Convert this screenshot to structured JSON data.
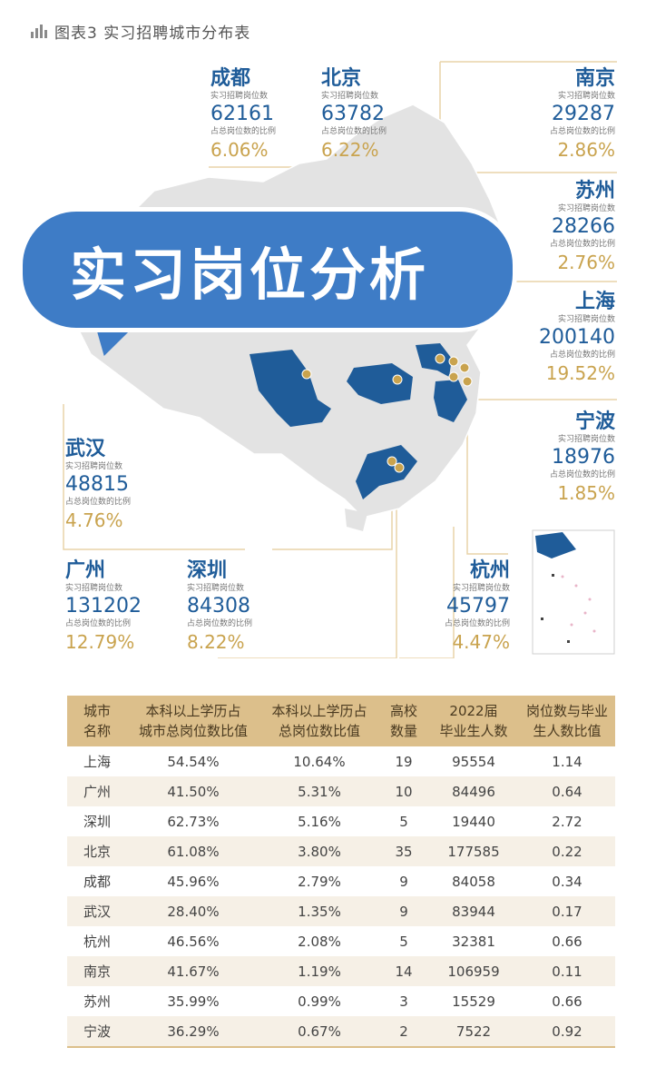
{
  "header": {
    "title": "图表3 实习招聘城市分布表",
    "icon": "bar-chart-icon"
  },
  "bubble": {
    "text": "实习岗位分析",
    "color": "#3e7cc6"
  },
  "map": {
    "job_label": "实习招聘岗位数",
    "share_label": "占总岗位数的比例",
    "cities": [
      {
        "key": "chengdu",
        "name": "成都",
        "jobs": "62161",
        "share": "6.06%"
      },
      {
        "key": "beijing",
        "name": "北京",
        "jobs": "63782",
        "share": "6.22%"
      },
      {
        "key": "nanjing",
        "name": "南京",
        "jobs": "29287",
        "share": "2.86%"
      },
      {
        "key": "suzhou",
        "name": "苏州",
        "jobs": "28266",
        "share": "2.76%"
      },
      {
        "key": "shanghai",
        "name": "上海",
        "jobs": "200140",
        "share": "19.52%"
      },
      {
        "key": "ningbo",
        "name": "宁波",
        "jobs": "18976",
        "share": "1.85%"
      },
      {
        "key": "wuhan",
        "name": "武汉",
        "jobs": "48815",
        "share": "4.76%"
      },
      {
        "key": "guangzhou",
        "name": "广州",
        "jobs": "131202",
        "share": "12.79%"
      },
      {
        "key": "shenzhen",
        "name": "深圳",
        "jobs": "84308",
        "share": "8.22%"
      },
      {
        "key": "hangzhou",
        "name": "杭州",
        "jobs": "45797",
        "share": "4.47%"
      }
    ],
    "colors": {
      "land": "#e3e3e3",
      "highlight": "#1f5c99",
      "pin": "#c9a34e",
      "line": "#e8d3a8"
    }
  },
  "table": {
    "headers": [
      [
        "城市",
        "名称"
      ],
      [
        "本科以上学历占",
        "城市总岗位数比值"
      ],
      [
        "本科以上学历占",
        "总岗位数比值"
      ],
      [
        "高校",
        "数量"
      ],
      [
        "2022届",
        "毕业生人数"
      ],
      [
        "岗位数与毕业",
        "生人数比值"
      ]
    ],
    "rows": [
      [
        "上海",
        "54.54%",
        "10.64%",
        "19",
        "95554",
        "1.14"
      ],
      [
        "广州",
        "41.50%",
        "5.31%",
        "10",
        "84496",
        "0.64"
      ],
      [
        "深圳",
        "62.73%",
        "5.16%",
        "5",
        "19440",
        "2.72"
      ],
      [
        "北京",
        "61.08%",
        "3.80%",
        "35",
        "177585",
        "0.22"
      ],
      [
        "成都",
        "45.96%",
        "2.79%",
        "9",
        "84058",
        "0.34"
      ],
      [
        "武汉",
        "28.40%",
        "1.35%",
        "9",
        "83944",
        "0.17"
      ],
      [
        "杭州",
        "46.56%",
        "2.08%",
        "5",
        "32381",
        "0.66"
      ],
      [
        "南京",
        "41.67%",
        "1.19%",
        "14",
        "106959",
        "0.11"
      ],
      [
        "苏州",
        "35.99%",
        "0.99%",
        "3",
        "15529",
        "0.66"
      ],
      [
        "宁波",
        "36.29%",
        "0.67%",
        "2",
        "7522",
        "0.92"
      ]
    ],
    "colors": {
      "header_bg": "#dcbf8b",
      "alt_row": "#f6f0e6"
    }
  }
}
